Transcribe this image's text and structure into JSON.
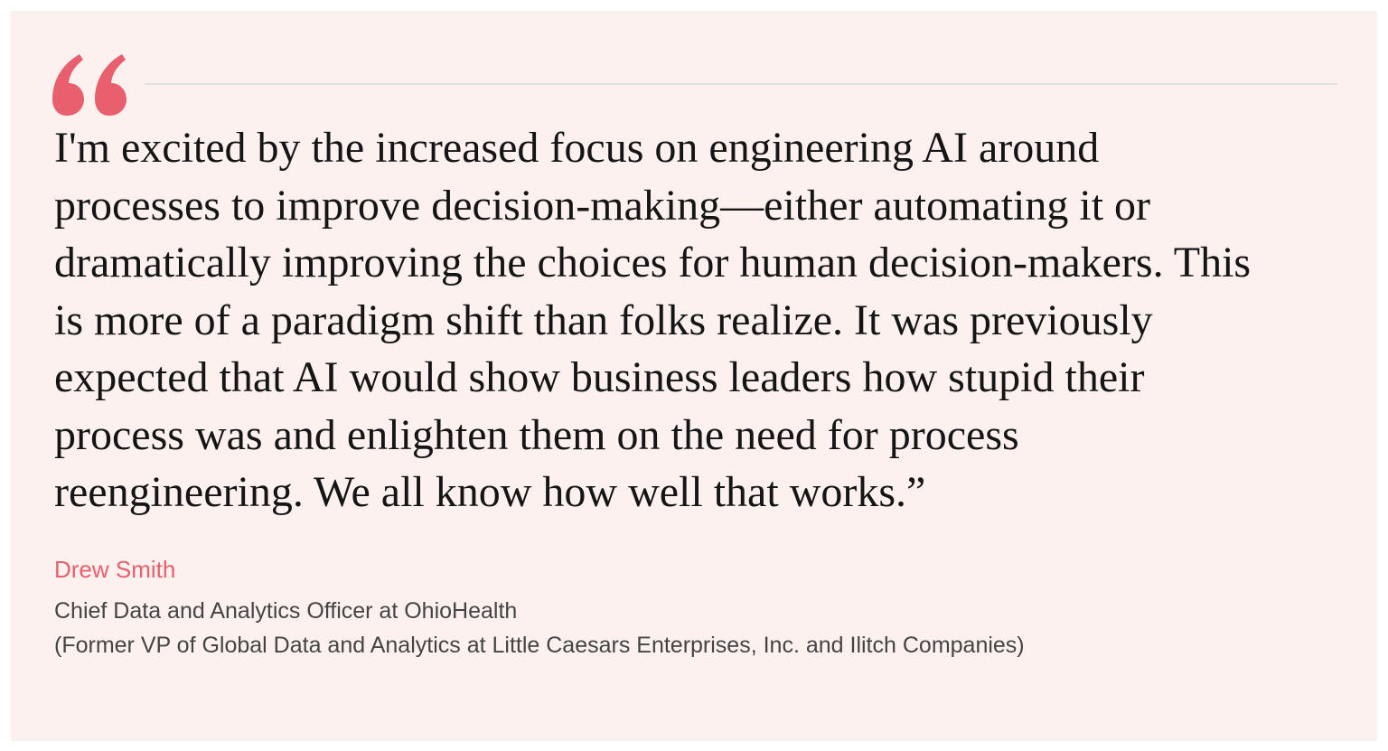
{
  "quote": {
    "lines": [
      "I'm excited by the increased focus on engineering AI around",
      "processes to improve decision-making—either automating it or",
      "dramatically improving the choices for human decision-makers. This",
      "is more of a paradigm shift than folks realize. It was previously",
      "expected that AI would show business leaders how stupid their",
      "process was and enlighten them on the need for process",
      "reengineering. We all know how well that works.”"
    ]
  },
  "author": {
    "name": "Drew Smith",
    "titles": [
      "Chief Data and Analytics Officer at OhioHealth",
      "(Former VP of Global Data and Analytics at Little Caesars Enterprises, Inc. and Ilitch Companies)"
    ]
  }
}
